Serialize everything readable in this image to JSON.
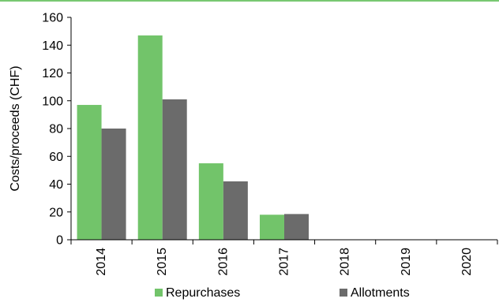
{
  "chart_data": {
    "type": "bar",
    "title": "",
    "xlabel": "",
    "ylabel": "Costs/proceeds (CHF)",
    "ylim": [
      0,
      160
    ],
    "yticks": [
      0,
      20,
      40,
      60,
      80,
      100,
      120,
      140,
      160
    ],
    "categories": [
      "2014",
      "2015",
      "2016",
      "2017",
      "2018",
      "2019",
      "2020"
    ],
    "series": [
      {
        "name": "Repurchases",
        "color": "#72c46a",
        "values": [
          97,
          147,
          55,
          18,
          0,
          0,
          0
        ]
      },
      {
        "name": "Allotments",
        "color": "#6b6b6b",
        "values": [
          80,
          101,
          42,
          18.5,
          0,
          0,
          0
        ]
      }
    ],
    "grid": false,
    "legend_position": "bottom",
    "accent_color": "#4bb543"
  }
}
